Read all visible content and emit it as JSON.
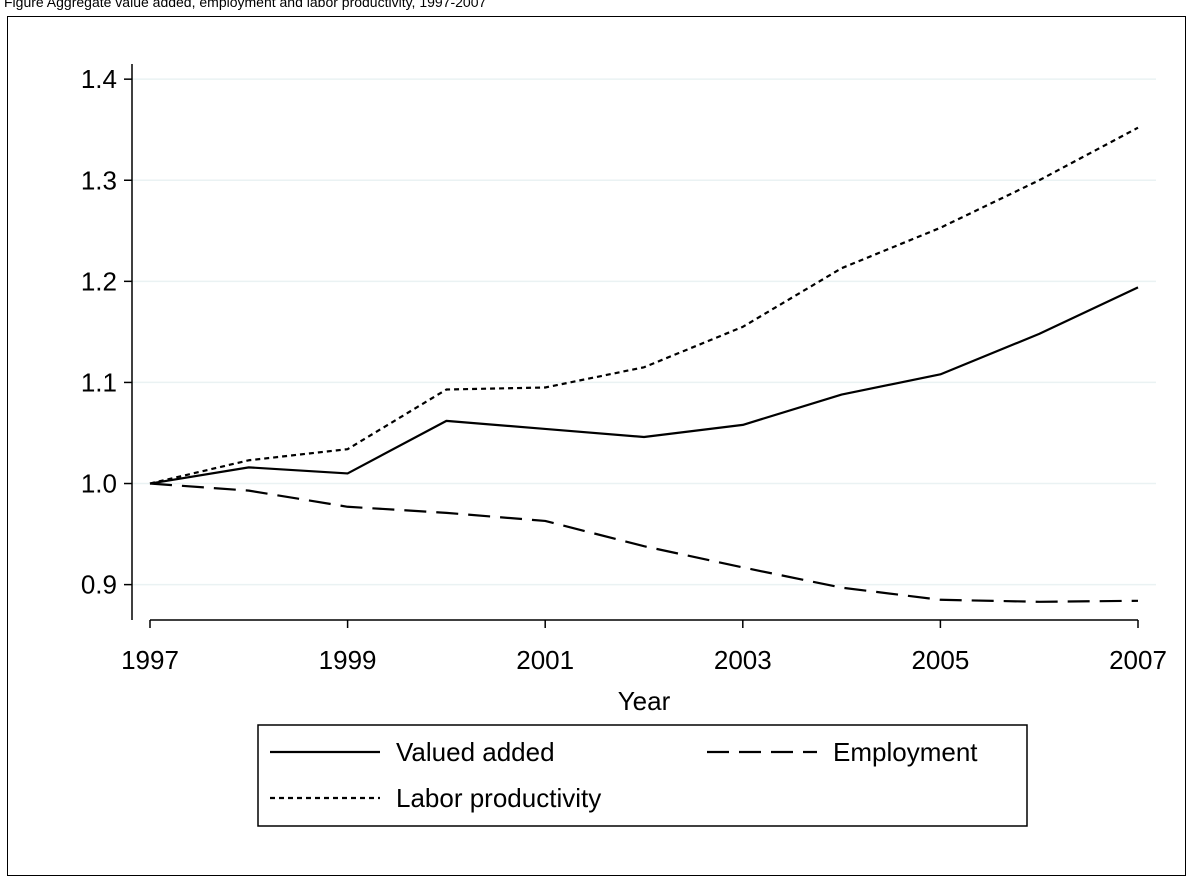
{
  "caption": "Figure  Aggregate value added, employment and labor productivity, 1997-2007",
  "chart_data": {
    "type": "line",
    "title": "",
    "xlabel": "Year",
    "ylabel": "",
    "x": [
      1997,
      1998,
      1999,
      2000,
      2001,
      2002,
      2003,
      2004,
      2005,
      2006,
      2007
    ],
    "xlim": [
      1997,
      2007
    ],
    "ylim": [
      0.865,
      1.415
    ],
    "x_ticks": [
      "1997",
      "1999",
      "2001",
      "2003",
      "2005",
      "2007"
    ],
    "y_ticks": [
      "0.9",
      "1.0",
      "1.1",
      "1.2",
      "1.3",
      "1.4"
    ],
    "grid": true,
    "legend_position": "bottom",
    "series": [
      {
        "name": "Valued added",
        "style": "solid",
        "values": [
          1.0,
          1.016,
          1.01,
          1.062,
          1.054,
          1.046,
          1.058,
          1.088,
          1.108,
          1.148,
          1.194
        ]
      },
      {
        "name": "Employment",
        "style": "long-dash",
        "values": [
          1.0,
          0.993,
          0.977,
          0.971,
          0.963,
          0.938,
          0.917,
          0.897,
          0.885,
          0.883,
          0.884
        ]
      },
      {
        "name": "Labor productivity",
        "style": "short-dash",
        "values": [
          1.0,
          1.023,
          1.034,
          1.093,
          1.095,
          1.115,
          1.155,
          1.213,
          1.253,
          1.3,
          1.352
        ]
      }
    ],
    "colors": {
      "line": "#000000",
      "grid": "#eaf2f3"
    }
  }
}
